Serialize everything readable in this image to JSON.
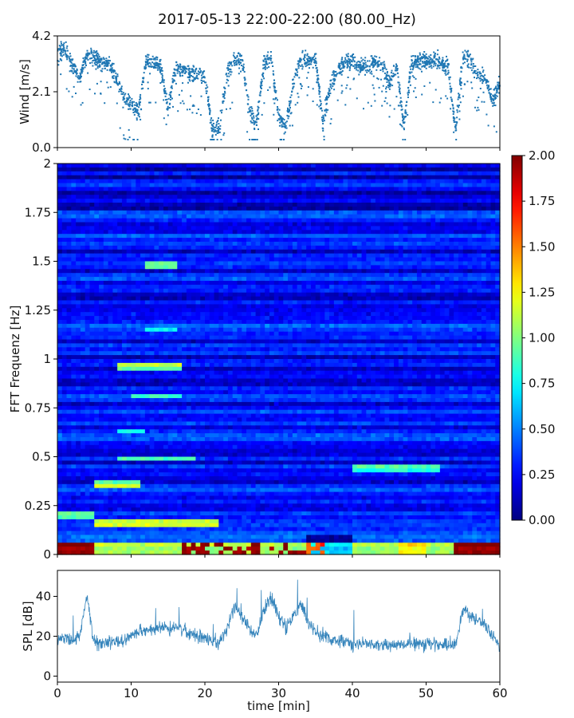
{
  "title": "2017-05-13 22:00-22:00 (80.00_Hz)",
  "colors": {
    "wind": "#1f77b4",
    "spl": "#1f77b4"
  },
  "chart_data": [
    {
      "type": "scatter",
      "name": "wind-panel",
      "ylabel": "Wind [m/s]",
      "xlim": [
        0,
        60
      ],
      "ylim": [
        0,
        4.2
      ],
      "yticks": [
        "0.0",
        "2.1",
        "4.2"
      ],
      "x": [
        0,
        1,
        2,
        3,
        4,
        5,
        6,
        7,
        8,
        9,
        10,
        11,
        12,
        13,
        14,
        15,
        16,
        17,
        18,
        19,
        20,
        21,
        22,
        23,
        24,
        25,
        26,
        27,
        28,
        29,
        30,
        31,
        32,
        33,
        34,
        35,
        36,
        37,
        38,
        39,
        40,
        41,
        42,
        43,
        44,
        45,
        46,
        47,
        48,
        49,
        50,
        51,
        52,
        53,
        54,
        55,
        56,
        57,
        58,
        59,
        60
      ],
      "y": [
        3.6,
        3.7,
        3.2,
        2.6,
        3.5,
        3.4,
        3.2,
        3.2,
        2.6,
        1.8,
        1.6,
        1.4,
        3.3,
        3.2,
        3.1,
        1.4,
        3.0,
        2.9,
        2.8,
        2.8,
        2.7,
        0.7,
        0.8,
        2.8,
        3.3,
        3.3,
        1.5,
        0.9,
        3.2,
        3.3,
        1.2,
        0.8,
        2.5,
        3.3,
        3.3,
        3.3,
        1.0,
        2.3,
        2.9,
        3.2,
        3.3,
        3.0,
        3.1,
        3.2,
        3.1,
        2.4,
        3.1,
        0.8,
        3.2,
        3.3,
        3.2,
        3.3,
        3.2,
        3.0,
        0.7,
        3.4,
        3.3,
        2.7,
        2.6,
        1.8,
        2.4
      ]
    },
    {
      "type": "heatmap",
      "name": "spectrogram-panel",
      "ylabel": "FFT Frequenz [Hz]",
      "xlim": [
        0,
        60
      ],
      "ylim": [
        0,
        2
      ],
      "yticks": [
        "0",
        "0.25",
        "0.5",
        "0.75",
        "1",
        "1.25",
        "1.5",
        "1.75",
        "2"
      ],
      "colorbar": {
        "range": [
          0,
          2
        ],
        "ticks": [
          "0.00",
          "0.25",
          "0.50",
          "0.75",
          "1.00",
          "1.25",
          "1.50",
          "1.75",
          "2.00"
        ],
        "colormap": "jet"
      }
    },
    {
      "type": "line",
      "name": "spl-panel",
      "xlabel": "time [min]",
      "ylabel": "SPL [dB]",
      "xlim": [
        0,
        60
      ],
      "ylim": [
        -3,
        53
      ],
      "xticks": [
        "0",
        "10",
        "20",
        "30",
        "40",
        "50",
        "60"
      ],
      "yticks": [
        "0",
        "20",
        "40"
      ],
      "x": [
        0,
        1,
        2,
        3,
        4,
        5,
        6,
        7,
        8,
        9,
        10,
        11,
        12,
        13,
        14,
        15,
        16,
        17,
        18,
        19,
        20,
        21,
        22,
        23,
        24,
        25,
        26,
        27,
        28,
        29,
        30,
        31,
        32,
        33,
        34,
        35,
        36,
        37,
        38,
        39,
        40,
        41,
        42,
        43,
        44,
        45,
        46,
        47,
        48,
        49,
        50,
        51,
        52,
        53,
        54,
        55,
        56,
        57,
        58,
        59,
        60
      ],
      "y": [
        18,
        19,
        18,
        20,
        40,
        17,
        16,
        17,
        17,
        18,
        20,
        22,
        23,
        24,
        25,
        24,
        24,
        23,
        21,
        19,
        19,
        17,
        17,
        24,
        35,
        30,
        24,
        20,
        33,
        40,
        30,
        24,
        30,
        36,
        27,
        22,
        21,
        18,
        17,
        17,
        16,
        16,
        16,
        16,
        16,
        16,
        16,
        16,
        16,
        16,
        16,
        16,
        16,
        16,
        16,
        34,
        30,
        28,
        26,
        20,
        14
      ]
    }
  ]
}
